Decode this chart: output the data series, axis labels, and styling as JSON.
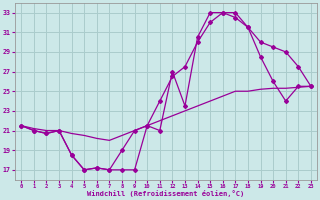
{
  "bg_color": "#cce8e8",
  "grid_color": "#aacccc",
  "line_color": "#990099",
  "xlabel": "Windchill (Refroidissement éolien,°C)",
  "xlim": [
    -0.5,
    23.5
  ],
  "ylim": [
    16.0,
    34.0
  ],
  "yticks": [
    17,
    19,
    21,
    23,
    25,
    27,
    29,
    31,
    33
  ],
  "xticks": [
    0,
    1,
    2,
    3,
    4,
    5,
    6,
    7,
    8,
    9,
    10,
    11,
    12,
    13,
    14,
    15,
    16,
    17,
    18,
    19,
    20,
    21,
    22,
    23
  ],
  "curve1_x": [
    0,
    1,
    2,
    3,
    4,
    5,
    6,
    7,
    8,
    9,
    10,
    11,
    12,
    13,
    14,
    15,
    16,
    17,
    18,
    19,
    20,
    21,
    22,
    23
  ],
  "curve1_y": [
    21.5,
    21.0,
    20.7,
    21.0,
    18.5,
    17.0,
    17.2,
    17.0,
    17.0,
    17.0,
    21.5,
    21.0,
    27.0,
    23.5,
    30.5,
    33.0,
    33.0,
    33.0,
    31.5,
    30.0,
    29.5,
    29.0,
    27.5,
    25.5
  ],
  "curve2_x": [
    0,
    1,
    2,
    3,
    4,
    5,
    6,
    7,
    8,
    9,
    10,
    11,
    12,
    13,
    14,
    15,
    16,
    17,
    18,
    19,
    20,
    21,
    22,
    23
  ],
  "curve2_y": [
    21.5,
    21.0,
    20.7,
    21.0,
    18.5,
    17.0,
    17.2,
    17.0,
    19.0,
    21.0,
    21.5,
    24.0,
    26.5,
    27.5,
    30.0,
    32.0,
    33.0,
    32.5,
    31.5,
    28.5,
    26.0,
    24.0,
    25.5,
    25.5
  ],
  "curve3_x": [
    0,
    1,
    2,
    3,
    4,
    5,
    6,
    7,
    8,
    9,
    10,
    11,
    12,
    13,
    14,
    15,
    16,
    17,
    18,
    19,
    20,
    21,
    22,
    23
  ],
  "curve3_y": [
    21.5,
    21.2,
    21.0,
    21.0,
    20.7,
    20.5,
    20.2,
    20.0,
    20.5,
    21.0,
    21.5,
    22.0,
    22.5,
    23.0,
    23.5,
    24.0,
    24.5,
    25.0,
    25.0,
    25.2,
    25.3,
    25.3,
    25.4,
    25.5
  ]
}
